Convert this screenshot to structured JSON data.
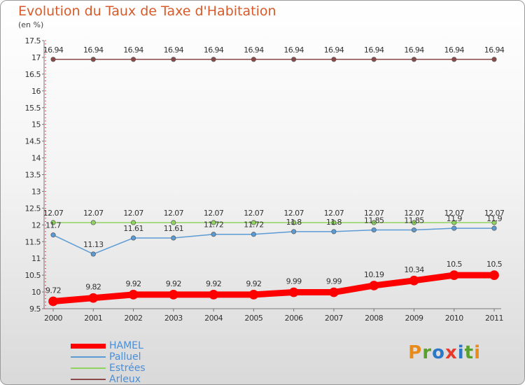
{
  "header": {
    "title": "Evolution du Taux de Taxe d'Habitation",
    "subtitle": "(en %)"
  },
  "logo": {
    "text": "Proxiti",
    "colors": [
      "#e98a1c",
      "#5aa02c",
      "#2b77c8",
      "#e83a2b",
      "#2b77c8",
      "#5aa02c",
      "#e98a1c"
    ]
  },
  "chart_data": {
    "type": "line",
    "x": [
      "2000",
      "2001",
      "2002",
      "2003",
      "2004",
      "2005",
      "2006",
      "2007",
      "2008",
      "2009",
      "2010",
      "2011"
    ],
    "ylim": [
      9.5,
      17.5
    ],
    "yticks": [
      "9.5",
      "10",
      "10.5",
      "11",
      "11.5",
      "12",
      "12.5",
      "13",
      "13.5",
      "14",
      "14.5",
      "15",
      "15.5",
      "16",
      "16.5",
      "17",
      "17.5"
    ],
    "grid": false,
    "legend_position": "bottom-left",
    "series": [
      {
        "name": "HAMEL",
        "color": "#ff0000",
        "width": 9,
        "values": [
          9.72,
          9.82,
          9.92,
          9.92,
          9.92,
          9.92,
          9.99,
          9.99,
          10.19,
          10.34,
          10.5,
          10.5
        ],
        "labels": [
          "9.72",
          "9.82",
          "9.92",
          "9.92",
          "9.92",
          "9.92",
          "9.99",
          "9.99",
          "10.19",
          "10.34",
          "10.5",
          "10.5"
        ]
      },
      {
        "name": "Palluel",
        "color": "#5b9bd5",
        "width": 1.5,
        "values": [
          11.7,
          11.13,
          11.61,
          11.61,
          11.72,
          11.72,
          11.8,
          11.8,
          11.85,
          11.85,
          11.9,
          11.9
        ],
        "labels": [
          "11.7",
          "11.13",
          "11.61",
          "11.61",
          "11.72",
          "11.72",
          "11.8",
          "11.8",
          "11.85",
          "11.85",
          "11.9",
          "11.9"
        ]
      },
      {
        "name": "Estrées",
        "color": "#8fd45f",
        "width": 1.5,
        "values": [
          12.07,
          12.07,
          12.07,
          12.07,
          12.07,
          12.07,
          12.07,
          12.07,
          12.07,
          12.07,
          12.07,
          12.07
        ],
        "labels": [
          "12.07",
          "12.07",
          "12.07",
          "12.07",
          "12.07",
          "12.07",
          "12.07",
          "12.07",
          "12.07",
          "12.07",
          "12.07",
          "12.07"
        ]
      },
      {
        "name": "Arleux",
        "color": "#8b4a4a",
        "width": 1.5,
        "values": [
          16.94,
          16.94,
          16.94,
          16.94,
          16.94,
          16.94,
          16.94,
          16.94,
          16.94,
          16.94,
          16.94,
          16.94
        ],
        "labels": [
          "16.94",
          "16.94",
          "16.94",
          "16.94",
          "16.94",
          "16.94",
          "16.94",
          "16.94",
          "16.94",
          "16.94",
          "16.94",
          "16.94"
        ]
      }
    ]
  }
}
